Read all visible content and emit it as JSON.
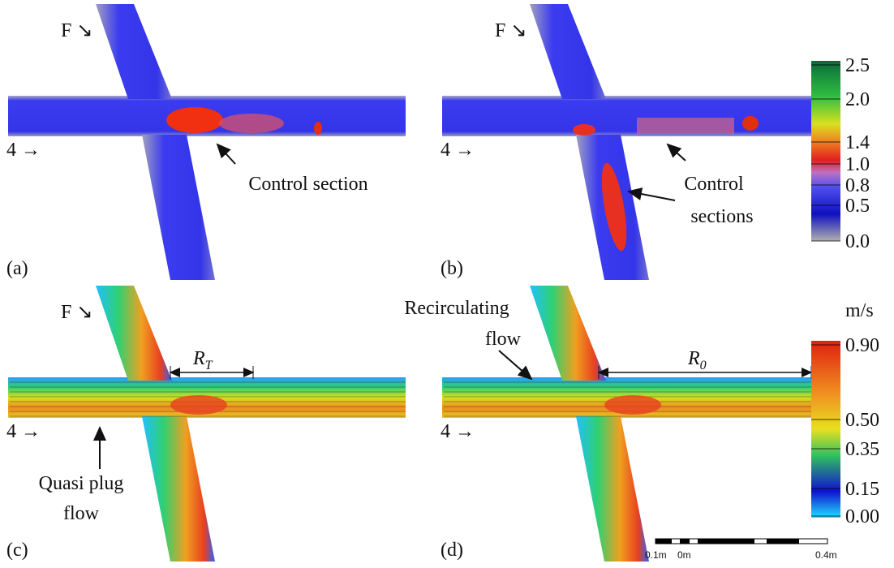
{
  "panels": [
    {
      "label": "(a)",
      "inlet_top": "F ↘",
      "inlet_left": "4 →",
      "annotation": [
        "Control section"
      ]
    },
    {
      "label": "(b)",
      "inlet_top": "F ↘",
      "inlet_left": "4 →",
      "annotation": [
        "Control",
        "sections"
      ]
    },
    {
      "label": "(c)",
      "inlet_top": "F ↘",
      "inlet_left": "4 →",
      "annotation": [
        "Quasi plug",
        "flow"
      ],
      "length": {
        "symbol": "R",
        "subscript": "T"
      }
    },
    {
      "label": "(d)",
      "inlet_left": "4 →",
      "annotation": [
        "Recirculating",
        "flow"
      ],
      "length": {
        "symbol": "R",
        "subscript": "0"
      }
    }
  ],
  "colorbar_top": {
    "ticks": [
      "2.5",
      "2.0",
      "1.4",
      "1.0",
      "0.8",
      "0.5",
      "0.0"
    ]
  },
  "colorbar_bottom": {
    "unit": "m/s",
    "ticks": [
      "0.90",
      "0.50",
      "0.35",
      "0.15",
      "0.00"
    ]
  },
  "scale_bar": {
    "labels": [
      "0.1m",
      "0m",
      "0.4m"
    ]
  }
}
